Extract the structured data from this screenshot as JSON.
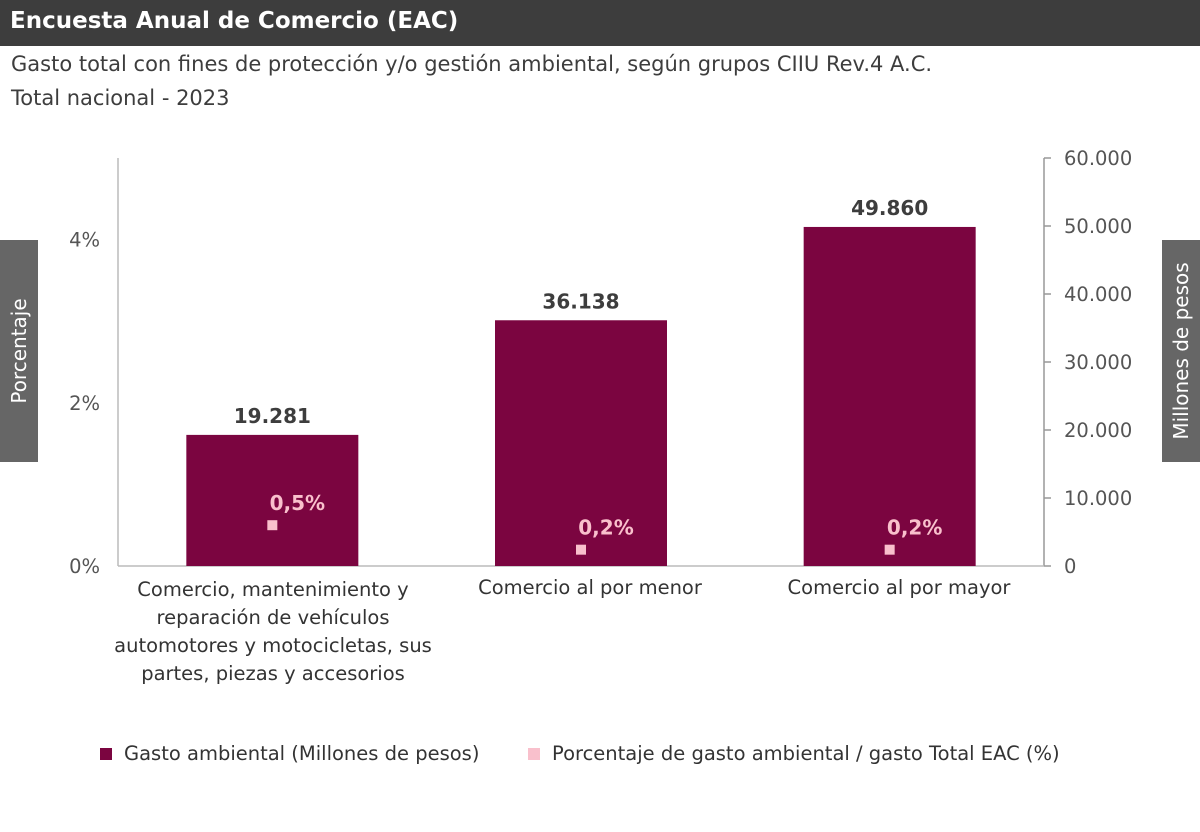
{
  "header": {
    "title": "Encuesta Anual de Comercio (EAC)"
  },
  "subtitle": [
    "Gasto total con fines de protección y/o gestión ambiental, según grupos CIIU Rev.4 A.C.",
    "Total nacional - 2023"
  ],
  "colors": {
    "bar": "#7b0540",
    "point": "#f9c0cc",
    "header": "#3d3d3d",
    "axis_title_bg": "#666666"
  },
  "chart_data": {
    "type": "bar",
    "categories": [
      "Comercio, mantenimiento y reparación de vehículos automotores y motocicletas, sus partes, piezas y accesorios",
      "Comercio al por menor",
      "Comercio al por mayor"
    ],
    "series": [
      {
        "name": "Gasto ambiental (Millones de pesos)",
        "type": "bar",
        "axis": "right",
        "values": [
          19281,
          36138,
          49860
        ],
        "labels": [
          "19.281",
          "36.138",
          "49.860"
        ]
      },
      {
        "name": "Porcentaje de gasto ambiental / gasto Total EAC (%)",
        "type": "scatter",
        "axis": "left",
        "values": [
          0.5,
          0.2,
          0.2
        ],
        "labels": [
          "0,5%",
          "0,2%",
          "0,2%"
        ]
      }
    ],
    "left_axis": {
      "label": "Porcentaje",
      "range": [
        0,
        5
      ],
      "ticks": [
        0,
        2,
        4
      ],
      "tick_labels": [
        "0%",
        "2%",
        "4%"
      ]
    },
    "right_axis": {
      "label": "Millones de pesos",
      "range": [
        0,
        60000
      ],
      "ticks": [
        0,
        10000,
        20000,
        30000,
        40000,
        50000,
        60000
      ],
      "tick_labels": [
        "0",
        "10.000",
        "20.000",
        "30.000",
        "40.000",
        "50.000",
        "60.000"
      ]
    },
    "grid": false,
    "legend": "bottom"
  }
}
